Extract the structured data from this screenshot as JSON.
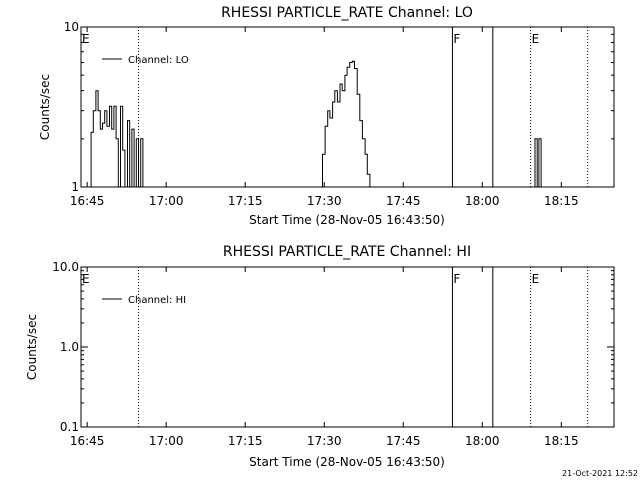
{
  "footer": {
    "timestamp": "21-Oct-2021 12:52"
  },
  "chart_data": [
    {
      "type": "line",
      "title": "RHESSI PARTICLE_RATE Channel: LO",
      "xlabel": "Start Time (28-Nov-05 16:43:50)",
      "ylabel": "Counts/sec",
      "y_scale": "log",
      "xlim": [
        "16:43:50",
        "18:25:00"
      ],
      "ylim": [
        1,
        10
      ],
      "x_ticks": [
        "16:45",
        "17:00",
        "17:15",
        "17:30",
        "17:45",
        "18:00",
        "18:15"
      ],
      "y_ticks": [
        "1",
        "10"
      ],
      "legend": {
        "label": "Channel: LO",
        "placement": "top-left"
      },
      "markers": [
        {
          "time": "16:43:50",
          "label": "E",
          "style": "none"
        },
        {
          "time": "16:54:45",
          "label": "",
          "style": "dotted"
        },
        {
          "time": "17:54:20",
          "label": "F",
          "style": "solid"
        },
        {
          "time": "18:02:00",
          "label": "",
          "style": "solid"
        },
        {
          "time": "18:09:10",
          "label": "E",
          "style": "dotted"
        },
        {
          "time": "18:20:00",
          "label": "",
          "style": "dotted"
        }
      ],
      "series": [
        {
          "x": [
            "16:45:10",
            "16:45:45",
            "16:46:10",
            "16:46:40",
            "16:47:05",
            "16:47:30",
            "16:47:55",
            "16:48:20",
            "16:48:45",
            "16:49:15",
            "16:49:40",
            "16:50:05",
            "16:50:30",
            "16:50:55",
            "16:51:20",
            "16:51:45",
            "16:52:10",
            "16:52:40",
            "16:53:05",
            "16:53:30",
            "16:53:55",
            "16:54:20",
            "16:54:45",
            "16:55:10",
            "16:55:35",
            "16:56:00"
          ],
          "y": [
            1.0,
            2.2,
            3.0,
            4.0,
            3.0,
            2.3,
            2.5,
            3.0,
            2.4,
            3.2,
            2.3,
            3.2,
            2.0,
            1.0,
            3.2,
            1.7,
            1.0,
            2.6,
            1.0,
            2.3,
            1.0,
            2.0,
            1.0,
            2.0,
            1.0,
            1.0
          ]
        },
        {
          "x": [
            "17:29:10",
            "17:29:40",
            "17:30:10",
            "17:30:40",
            "17:31:05",
            "17:31:35",
            "17:32:00",
            "17:32:30",
            "17:33:00",
            "17:33:25",
            "17:33:55",
            "17:34:20",
            "17:34:50",
            "17:35:20",
            "17:35:45",
            "17:36:15",
            "17:36:45",
            "17:37:15",
            "17:37:45",
            "17:38:10",
            "17:38:40"
          ],
          "y": [
            1.0,
            1.6,
            2.4,
            3.0,
            2.7,
            3.4,
            4.0,
            3.4,
            4.4,
            4.0,
            5.0,
            5.6,
            6.0,
            6.1,
            5.5,
            3.8,
            2.6,
            2.0,
            1.6,
            1.2,
            1.0
          ]
        },
        {
          "x": [
            "18:09:40",
            "18:10:00",
            "18:10:25",
            "18:10:45",
            "18:11:10"
          ],
          "y": [
            1.0,
            2.0,
            1.0,
            2.0,
            1.0
          ]
        }
      ]
    },
    {
      "type": "line",
      "title": "RHESSI PARTICLE_RATE Channel: HI",
      "xlabel": "Start Time (28-Nov-05 16:43:50)",
      "ylabel": "Counts/sec",
      "y_scale": "log",
      "xlim": [
        "16:43:50",
        "18:25:00"
      ],
      "ylim": [
        0.1,
        10.0
      ],
      "x_ticks": [
        "16:45",
        "17:00",
        "17:15",
        "17:30",
        "17:45",
        "18:00",
        "18:15"
      ],
      "y_ticks": [
        "0.1",
        "1.0",
        "10.0"
      ],
      "legend": {
        "label": "Channel: HI",
        "placement": "top-left"
      },
      "markers": [
        {
          "time": "16:43:50",
          "label": "E",
          "style": "none"
        },
        {
          "time": "16:54:45",
          "label": "",
          "style": "dotted"
        },
        {
          "time": "17:54:20",
          "label": "F",
          "style": "solid"
        },
        {
          "time": "18:02:00",
          "label": "",
          "style": "solid"
        },
        {
          "time": "18:09:10",
          "label": "E",
          "style": "dotted"
        },
        {
          "time": "18:20:00",
          "label": "",
          "style": "dotted"
        }
      ],
      "series": []
    }
  ]
}
